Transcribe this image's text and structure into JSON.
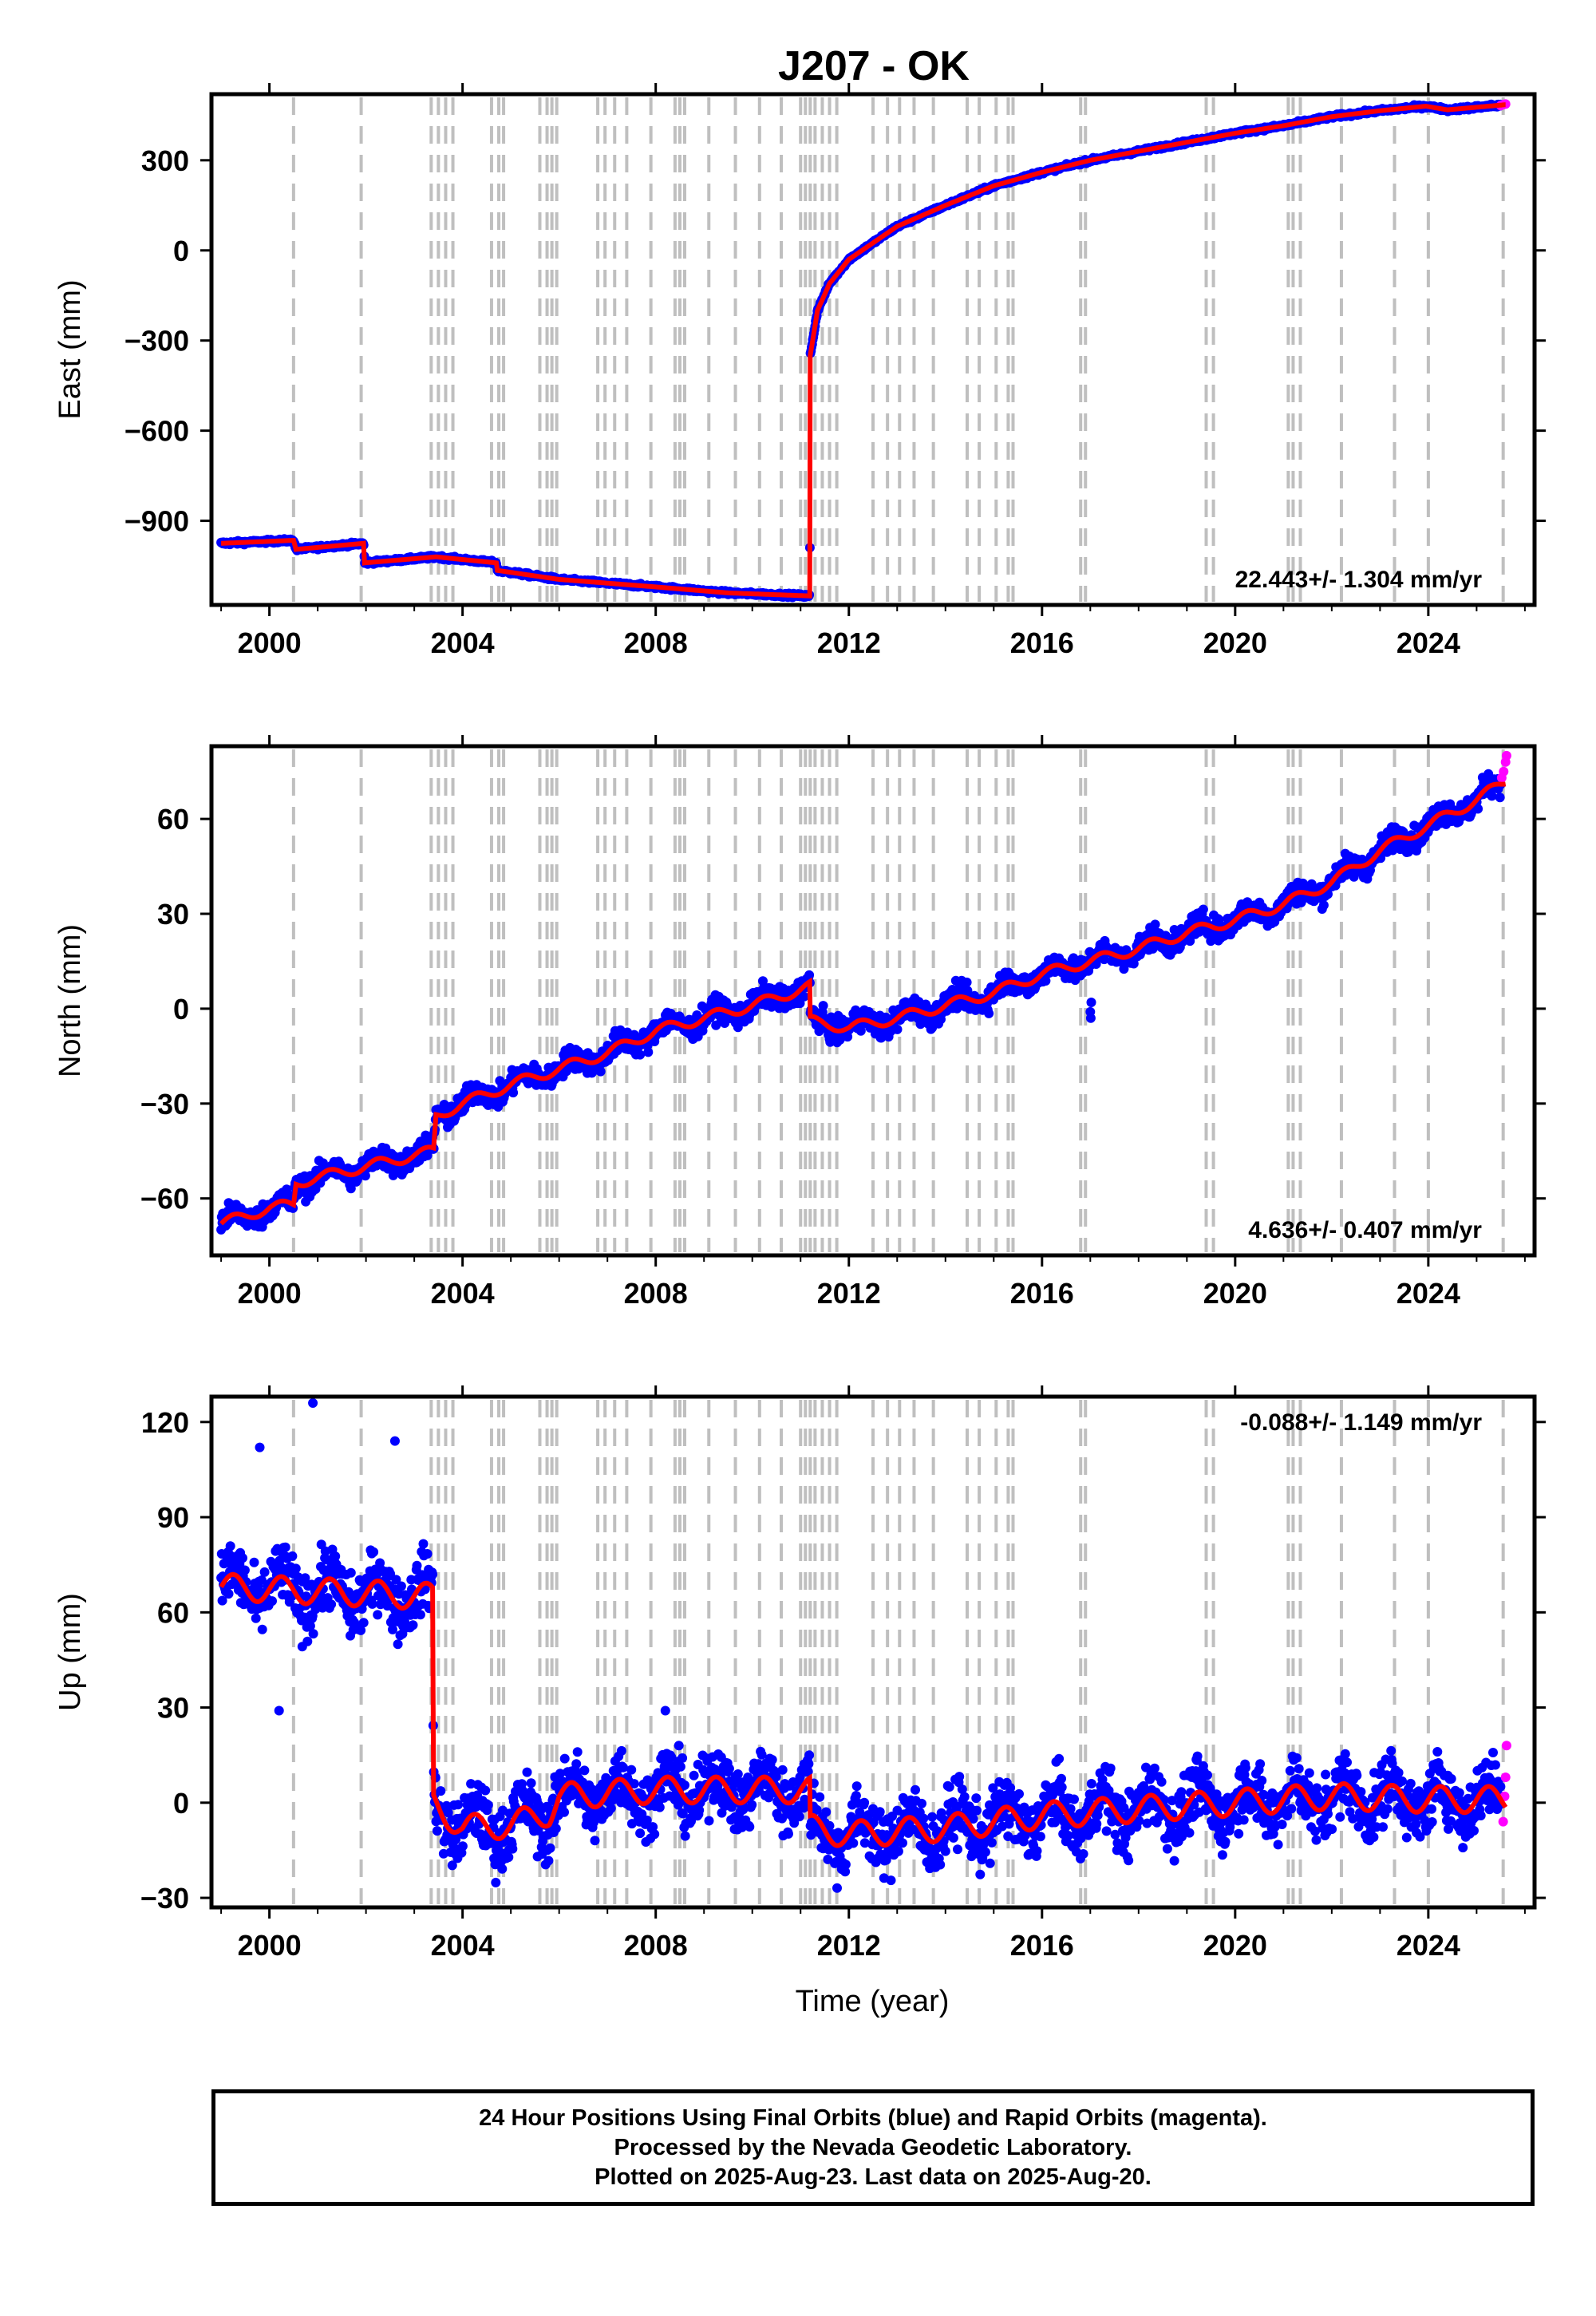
{
  "title": "J207 - OK",
  "xlabel": "Time (year)",
  "colors": {
    "final_orbits": "#0000ff",
    "rapid_orbits": "#ff00ff",
    "model_fit": "#ff0000",
    "event_lines": "#bfbfbf",
    "frame": "#000000"
  },
  "footer": {
    "line1": "24 Hour Positions Using Final Orbits (blue) and Rapid Orbits (magenta).",
    "line2": "Processed by the Nevada Geodetic Laboratory.",
    "line3": "Plotted on 2025-Aug-23. Last data on 2025-Aug-20."
  },
  "chart_data": [
    {
      "type": "scatter",
      "ylabel": "East (mm)",
      "rate_label": "22.443+/- 1.304 mm/yr",
      "xlim": [
        1998.8,
        2026.2
      ],
      "ylim": [
        -1180,
        520
      ],
      "x_ticks": [
        2000,
        2004,
        2008,
        2012,
        2016,
        2020,
        2024
      ],
      "y_ticks": [
        -900,
        -600,
        -300,
        0,
        300
      ],
      "y_tick_labels": [
        "−900",
        "−600",
        "−300",
        "0",
        "300"
      ],
      "trend_points": [
        [
          1999.0,
          -975
        ],
        [
          2000.5,
          -965
        ],
        [
          2000.55,
          -995
        ],
        [
          2001.95,
          -975
        ],
        [
          2001.97,
          -1040
        ],
        [
          2003.45,
          -1020
        ],
        [
          2004.7,
          -1040
        ],
        [
          2004.72,
          -1065
        ],
        [
          2006.0,
          -1095
        ],
        [
          2008.0,
          -1120
        ],
        [
          2009.5,
          -1140
        ],
        [
          2011.19,
          -1150
        ],
        [
          2011.2,
          -350
        ],
        [
          2011.35,
          -200
        ],
        [
          2011.6,
          -110
        ],
        [
          2012.0,
          -30
        ],
        [
          2013.0,
          80
        ],
        [
          2014.0,
          150
        ],
        [
          2015.0,
          215
        ],
        [
          2016.0,
          260
        ],
        [
          2017.0,
          300
        ],
        [
          2018.0,
          330
        ],
        [
          2019.0,
          360
        ],
        [
          2020.0,
          390
        ],
        [
          2021.0,
          415
        ],
        [
          2022.0,
          445
        ],
        [
          2023.0,
          465
        ],
        [
          2023.95,
          480
        ],
        [
          2024.4,
          468
        ],
        [
          2025.6,
          485
        ]
      ],
      "noise_mm": 4,
      "rapid_points": [
        [
          2025.5,
          482
        ],
        [
          2025.55,
          485
        ],
        [
          2025.6,
          487
        ]
      ]
    },
    {
      "type": "scatter",
      "ylabel": "North (mm)",
      "rate_label": "4.636+/- 0.407 mm/yr",
      "xlim": [
        1998.8,
        2026.2
      ],
      "ylim": [
        -78,
        83
      ],
      "x_ticks": [
        2000,
        2004,
        2008,
        2012,
        2016,
        2020,
        2024
      ],
      "y_ticks": [
        -60,
        -30,
        0,
        30,
        60
      ],
      "y_tick_labels": [
        "−60",
        "−30",
        "0",
        "30",
        "60"
      ],
      "trend_points": [
        [
          1999.0,
          -68
        ],
        [
          2000.0,
          -63
        ],
        [
          2000.5,
          -62
        ],
        [
          2000.55,
          -55
        ],
        [
          2003.4,
          -45
        ],
        [
          2003.45,
          -34
        ],
        [
          2004.0,
          -30
        ],
        [
          2005.0,
          -24
        ],
        [
          2006.0,
          -19
        ],
        [
          2007.0,
          -14
        ],
        [
          2008.0,
          -7
        ],
        [
          2009.0,
          -3
        ],
        [
          2010.0,
          1
        ],
        [
          2011.19,
          7
        ],
        [
          2011.2,
          -4
        ],
        [
          2012.0,
          -6
        ],
        [
          2013.0,
          -3
        ],
        [
          2014.0,
          1
        ],
        [
          2015.0,
          5
        ],
        [
          2016.0,
          11
        ],
        [
          2017.0,
          15
        ],
        [
          2018.0,
          19
        ],
        [
          2019.0,
          24
        ],
        [
          2020.0,
          28
        ],
        [
          2021.0,
          33
        ],
        [
          2022.0,
          40
        ],
        [
          2023.0,
          50
        ],
        [
          2024.0,
          58
        ],
        [
          2025.0,
          66
        ],
        [
          2025.6,
          72
        ]
      ],
      "noise_mm": 2.6,
      "season_mm": 2.2,
      "outliers": [
        [
          2017.0,
          -1
        ],
        [
          2017.02,
          2
        ],
        [
          2017.01,
          -3
        ]
      ],
      "rapid_points": [
        [
          2025.52,
          73
        ],
        [
          2025.56,
          75
        ],
        [
          2025.6,
          78
        ],
        [
          2025.62,
          80
        ]
      ]
    },
    {
      "type": "scatter",
      "ylabel": "Up (mm)",
      "rate_label": "-0.088+/- 1.149 mm/yr",
      "xlim": [
        1998.8,
        2026.2
      ],
      "ylim": [
        -33,
        128
      ],
      "x_ticks": [
        2000,
        2004,
        2008,
        2012,
        2016,
        2020,
        2024
      ],
      "y_ticks": [
        -30,
        0,
        30,
        60,
        90,
        120
      ],
      "y_tick_labels": [
        "−30",
        "0",
        "30",
        "60",
        "90",
        "120"
      ],
      "trend_points": [
        [
          1999.0,
          68
        ],
        [
          2003.38,
          65
        ],
        [
          2003.4,
          0
        ],
        [
          2004.0,
          -8
        ],
        [
          2005.0,
          -7
        ],
        [
          2005.8,
          -3
        ],
        [
          2006.0,
          2
        ],
        [
          2008.0,
          4
        ],
        [
          2011.19,
          4
        ],
        [
          2011.2,
          -8
        ],
        [
          2012.0,
          -10
        ],
        [
          2014.0,
          -8
        ],
        [
          2016.0,
          -4
        ],
        [
          2018.0,
          -2
        ],
        [
          2020.0,
          0
        ],
        [
          2022.0,
          2
        ],
        [
          2024.0,
          1
        ],
        [
          2025.6,
          1
        ]
      ],
      "noise_mm": 7,
      "season_mm": 5.5,
      "outliers": [
        [
          2000.9,
          126
        ],
        [
          1999.8,
          112
        ],
        [
          2002.6,
          114
        ],
        [
          2000.2,
          29
        ],
        [
          2008.2,
          29
        ]
      ],
      "rapid_points": [
        [
          2025.55,
          -6
        ],
        [
          2025.58,
          2
        ],
        [
          2025.6,
          8
        ],
        [
          2025.62,
          18
        ]
      ]
    }
  ],
  "event_lines": [
    2000.5,
    2001.9,
    2003.35,
    2003.5,
    2003.65,
    2003.8,
    2004.6,
    2004.75,
    2004.85,
    2005.6,
    2005.75,
    2005.85,
    2005.95,
    2006.8,
    2006.95,
    2007.15,
    2007.4,
    2007.9,
    2008.4,
    2008.5,
    2008.6,
    2009.1,
    2009.65,
    2010.15,
    2010.6,
    2011.0,
    2011.1,
    2011.2,
    2011.3,
    2011.45,
    2011.6,
    2011.75,
    2012.5,
    2012.8,
    2013.05,
    2013.35,
    2013.75,
    2014.45,
    2014.7,
    2015.05,
    2015.3,
    2015.4,
    2016.8,
    2016.9,
    2019.4,
    2019.55,
    2021.1,
    2021.2,
    2021.35,
    2022.2,
    2023.3,
    2024.0,
    2025.55
  ]
}
